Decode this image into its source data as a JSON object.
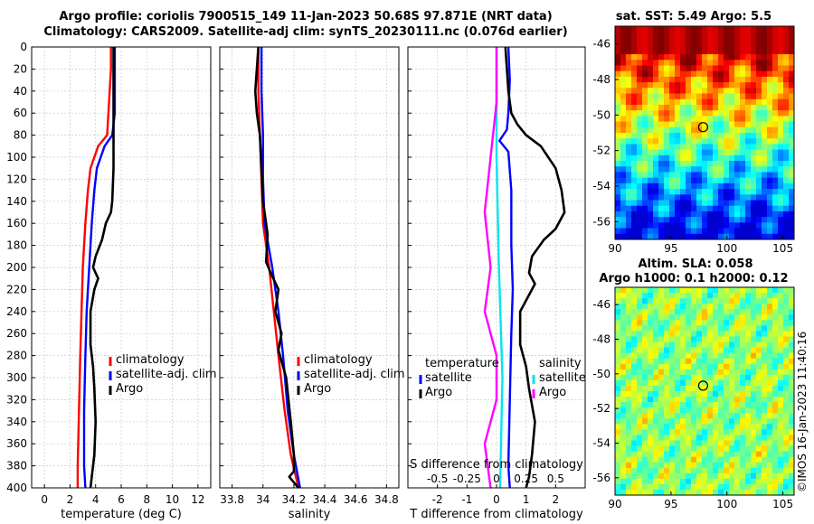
{
  "title": {
    "line1": "Argo profile: coriolis 7900515_149 11-Jan-2023 50.68S 97.871E (NRT data)",
    "line2": "Climatology: CARS2009. Satellite-adj clim: synTS_20230111.nc (0.076d earlier)"
  },
  "watermark": "©IMOS 16-Jan-2023 11:40:16",
  "colors": {
    "climatology": "#ff0000",
    "satellite": "#0000ff",
    "argo": "#000000",
    "salinity_sat": "#00e5ee",
    "salinity_argo": "#ff00ff"
  },
  "chart_data": [
    {
      "type": "line",
      "id": "temperature",
      "xlabel": "temperature (deg C)",
      "ylabel": "",
      "xlim": [
        -1,
        13
      ],
      "ylim": [
        400,
        0
      ],
      "xticks": [
        0,
        2,
        4,
        6,
        8,
        10,
        12
      ],
      "yticks": [
        0,
        20,
        40,
        60,
        80,
        100,
        120,
        140,
        160,
        180,
        200,
        220,
        240,
        260,
        280,
        300,
        320,
        340,
        360,
        380,
        400
      ],
      "legend": [
        "climatology",
        "satellite-adj. clim",
        "Argo"
      ],
      "series": [
        {
          "name": "climatology",
          "color": "#ff0000",
          "points": [
            [
              5.2,
              0
            ],
            [
              5.2,
              20
            ],
            [
              5.1,
              40
            ],
            [
              5.0,
              60
            ],
            [
              4.9,
              80
            ],
            [
              4.2,
              90
            ],
            [
              3.6,
              110
            ],
            [
              3.4,
              130
            ],
            [
              3.2,
              160
            ],
            [
              3.0,
              200
            ],
            [
              2.9,
              240
            ],
            [
              2.8,
              280
            ],
            [
              2.7,
              330
            ],
            [
              2.6,
              380
            ],
            [
              2.6,
              400
            ]
          ]
        },
        {
          "name": "satellite-adj. clim",
          "color": "#0000ff",
          "points": [
            [
              5.5,
              0
            ],
            [
              5.5,
              20
            ],
            [
              5.5,
              40
            ],
            [
              5.5,
              60
            ],
            [
              5.3,
              80
            ],
            [
              4.7,
              90
            ],
            [
              4.1,
              110
            ],
            [
              3.9,
              130
            ],
            [
              3.7,
              160
            ],
            [
              3.5,
              200
            ],
            [
              3.3,
              240
            ],
            [
              3.2,
              280
            ],
            [
              3.1,
              330
            ],
            [
              3.1,
              380
            ],
            [
              3.2,
              400
            ]
          ]
        },
        {
          "name": "Argo",
          "color": "#000000",
          "points": [
            [
              5.4,
              0
            ],
            [
              5.4,
              40
            ],
            [
              5.4,
              80
            ],
            [
              5.4,
              110
            ],
            [
              5.3,
              140
            ],
            [
              5.2,
              150
            ],
            [
              4.8,
              160
            ],
            [
              4.5,
              175
            ],
            [
              4.0,
              190
            ],
            [
              3.8,
              200
            ],
            [
              4.2,
              210
            ],
            [
              3.9,
              220
            ],
            [
              3.6,
              240
            ],
            [
              3.6,
              270
            ],
            [
              3.8,
              290
            ],
            [
              3.9,
              310
            ],
            [
              4.0,
              340
            ],
            [
              3.9,
              370
            ],
            [
              3.7,
              390
            ],
            [
              3.6,
              400
            ]
          ]
        }
      ]
    },
    {
      "type": "line",
      "id": "salinity",
      "xlabel": "salinity",
      "ylabel": "",
      "xlim": [
        33.72,
        34.88
      ],
      "ylim": [
        400,
        0
      ],
      "xticks": [
        33.8,
        34,
        34.2,
        34.4,
        34.6,
        34.8
      ],
      "xticklabels": [
        "33.8",
        "34",
        "34.2",
        "34.4",
        "34.6",
        "34.8"
      ],
      "legend": [
        "climatology",
        "satellite-adj. clim",
        "Argo"
      ],
      "series": [
        {
          "name": "climatology",
          "color": "#ff0000",
          "points": [
            [
              33.97,
              0
            ],
            [
              33.97,
              40
            ],
            [
              33.98,
              80
            ],
            [
              33.99,
              120
            ],
            [
              34.0,
              160
            ],
            [
              34.04,
              200
            ],
            [
              34.07,
              240
            ],
            [
              34.1,
              280
            ],
            [
              34.14,
              330
            ],
            [
              34.18,
              370
            ],
            [
              34.23,
              400
            ]
          ]
        },
        {
          "name": "satellite-adj. clim",
          "color": "#0000ff",
          "points": [
            [
              33.99,
              0
            ],
            [
              33.99,
              40
            ],
            [
              34.0,
              80
            ],
            [
              34.0,
              120
            ],
            [
              34.01,
              160
            ],
            [
              34.06,
              200
            ],
            [
              34.1,
              240
            ],
            [
              34.13,
              280
            ],
            [
              34.16,
              330
            ],
            [
              34.2,
              370
            ],
            [
              34.24,
              400
            ]
          ]
        },
        {
          "name": "Argo",
          "color": "#000000",
          "points": [
            [
              33.97,
              0
            ],
            [
              33.96,
              20
            ],
            [
              33.95,
              40
            ],
            [
              33.96,
              60
            ],
            [
              33.98,
              80
            ],
            [
              33.99,
              110
            ],
            [
              34.0,
              140
            ],
            [
              34.03,
              170
            ],
            [
              34.02,
              195
            ],
            [
              34.05,
              205
            ],
            [
              34.1,
              220
            ],
            [
              34.08,
              240
            ],
            [
              34.12,
              260
            ],
            [
              34.1,
              275
            ],
            [
              34.15,
              300
            ],
            [
              34.18,
              340
            ],
            [
              34.2,
              370
            ],
            [
              34.2,
              385
            ],
            [
              34.17,
              390
            ],
            [
              34.23,
              400
            ]
          ]
        }
      ]
    },
    {
      "type": "line",
      "id": "difference",
      "xlabel": "T difference from climatology",
      "top_label": "S difference from climatology",
      "xlim": [
        -3,
        3
      ],
      "ylim": [
        400,
        0
      ],
      "xticks": [
        -2,
        -1,
        0,
        1,
        2
      ],
      "xticklabels": [
        "-2",
        "-1",
        "0",
        "1",
        "2"
      ],
      "s_ticklabels": [
        "-0.5",
        "-0.25",
        "0",
        "0.25",
        "0.5"
      ],
      "legend_temperature": {
        "title": "temperature",
        "items": [
          "satellite",
          "Argo"
        ]
      },
      "legend_salinity": {
        "title": "salinity",
        "items": [
          "satellite",
          "Argo"
        ]
      },
      "series": [
        {
          "name": "T satellite",
          "color": "#0000ff",
          "points": [
            [
              0.4,
              0
            ],
            [
              0.45,
              30
            ],
            [
              0.4,
              60
            ],
            [
              0.35,
              75
            ],
            [
              0.1,
              85
            ],
            [
              0.4,
              95
            ],
            [
              0.5,
              130
            ],
            [
              0.5,
              180
            ],
            [
              0.55,
              220
            ],
            [
              0.5,
              260
            ],
            [
              0.45,
              320
            ],
            [
              0.4,
              380
            ],
            [
              0.45,
              400
            ]
          ]
        },
        {
          "name": "T Argo",
          "color": "#000000",
          "points": [
            [
              0.3,
              0
            ],
            [
              0.4,
              40
            ],
            [
              0.5,
              60
            ],
            [
              0.7,
              70
            ],
            [
              1.0,
              80
            ],
            [
              1.5,
              90
            ],
            [
              2.0,
              110
            ],
            [
              2.2,
              130
            ],
            [
              2.3,
              150
            ],
            [
              2.0,
              165
            ],
            [
              1.6,
              175
            ],
            [
              1.2,
              190
            ],
            [
              1.1,
              205
            ],
            [
              1.3,
              215
            ],
            [
              0.8,
              240
            ],
            [
              0.8,
              270
            ],
            [
              1.0,
              290
            ],
            [
              1.1,
              310
            ],
            [
              1.3,
              340
            ],
            [
              1.2,
              370
            ],
            [
              1.1,
              390
            ],
            [
              1.0,
              400
            ]
          ]
        },
        {
          "name": "S satellite",
          "color": "#00e5ee",
          "points": [
            [
              0.0,
              0
            ],
            [
              0.0,
              100
            ],
            [
              0.02,
              200
            ],
            [
              0.05,
              300
            ],
            [
              0.03,
              400
            ]
          ]
        },
        {
          "name": "S Argo",
          "color": "#ff00ff",
          "points": [
            [
              0.0,
              0
            ],
            [
              0.0,
              50
            ],
            [
              -0.05,
              100
            ],
            [
              -0.1,
              150
            ],
            [
              -0.05,
              200
            ],
            [
              -0.1,
              240
            ],
            [
              0.0,
              280
            ],
            [
              0.0,
              320
            ],
            [
              -0.1,
              360
            ],
            [
              -0.05,
              400
            ]
          ]
        }
      ]
    },
    {
      "type": "heatmap",
      "id": "sst_map",
      "title": "sat. SST: 5.49 Argo: 5.5",
      "xlim": [
        90,
        106
      ],
      "ylim": [
        -57,
        -45
      ],
      "xticks": [
        90,
        95,
        100,
        105
      ],
      "yticks": [
        -46,
        -48,
        -50,
        -52,
        -54,
        -56
      ],
      "marker": {
        "lon": 97.87,
        "lat": -50.68
      }
    },
    {
      "type": "heatmap",
      "id": "sla_map",
      "title": "Altim. SLA: 0.058",
      "subtitle": "Argo h1000: 0.1 h2000: 0.12",
      "xlim": [
        90,
        106
      ],
      "ylim": [
        -57,
        -45
      ],
      "xticks": [
        90,
        95,
        100,
        105
      ],
      "yticks": [
        -46,
        -48,
        -50,
        -52,
        -54,
        -56
      ],
      "marker": {
        "lon": 97.87,
        "lat": -50.68
      }
    }
  ]
}
